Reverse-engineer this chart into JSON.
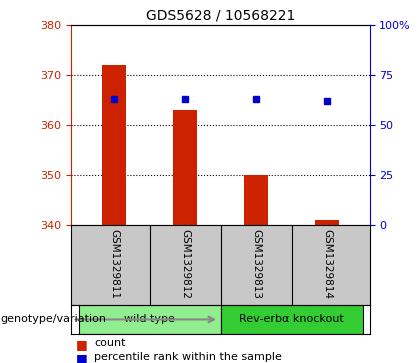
{
  "title": "GDS5628 / 10568221",
  "samples": [
    "GSM1329811",
    "GSM1329812",
    "GSM1329813",
    "GSM1329814"
  ],
  "counts": [
    372,
    363,
    350,
    341
  ],
  "count_base": 340,
  "percentiles": [
    63,
    63,
    63,
    62
  ],
  "ylim_left": [
    340,
    380
  ],
  "ylim_right": [
    0,
    100
  ],
  "yticks_left": [
    340,
    350,
    360,
    370,
    380
  ],
  "yticks_right": [
    0,
    25,
    50,
    75,
    100
  ],
  "yticklabels_right": [
    "0",
    "25",
    "50",
    "75",
    "100%"
  ],
  "groups": [
    {
      "label": "wild type",
      "indices": [
        0,
        1
      ],
      "color": "#90EE90"
    },
    {
      "label": "Rev-erbα knockout",
      "indices": [
        2,
        3
      ],
      "color": "#33CC33"
    }
  ],
  "bar_color": "#CC2200",
  "dot_color": "#0000CC",
  "bg_color": "#FFFFFF",
  "left_axis_color": "#CC2200",
  "right_axis_color": "#0000CC",
  "genotype_label": "genotype/variation",
  "legend_count_label": "count",
  "legend_pct_label": "percentile rank within the sample",
  "bar_width": 0.35,
  "sample_area_color": "#C8C8C8",
  "dot_size": 5
}
